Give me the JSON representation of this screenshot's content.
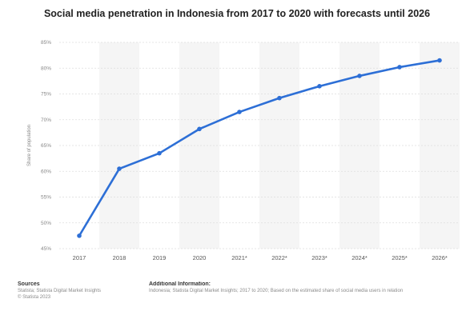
{
  "chart_data": {
    "type": "line",
    "title": "Social media penetration in Indonesia from 2017 to 2020 with forecasts until 2026",
    "ylabel": "Share of population",
    "xlabel": "",
    "categories": [
      "2017",
      "2018",
      "2019",
      "2020",
      "2021*",
      "2022*",
      "2023*",
      "2024*",
      "2025*",
      "2026*"
    ],
    "series": [
      {
        "values": [
          47.5,
          60.5,
          63.5,
          68.2,
          71.5,
          74.2,
          76.5,
          78.5,
          80.2,
          81.5
        ]
      }
    ],
    "yticks": [
      "45%",
      "50%",
      "55%",
      "60%",
      "65%",
      "70%",
      "75%",
      "80%",
      "85%"
    ],
    "ylim": [
      45,
      85
    ],
    "grid": true,
    "line_color": "#2d6fd6",
    "band_color": "#f5f5f5"
  },
  "footer": {
    "sources_heading": "Sources",
    "sources_line1": "Statista; Statista Digital Market Insights",
    "sources_line2": "© Statista 2023",
    "info_heading": "Additional Information:",
    "info_text": "Indonesia; Statista Digital Market Insights; 2017 to 2020; Based on the estimated share of social media users in relation"
  }
}
